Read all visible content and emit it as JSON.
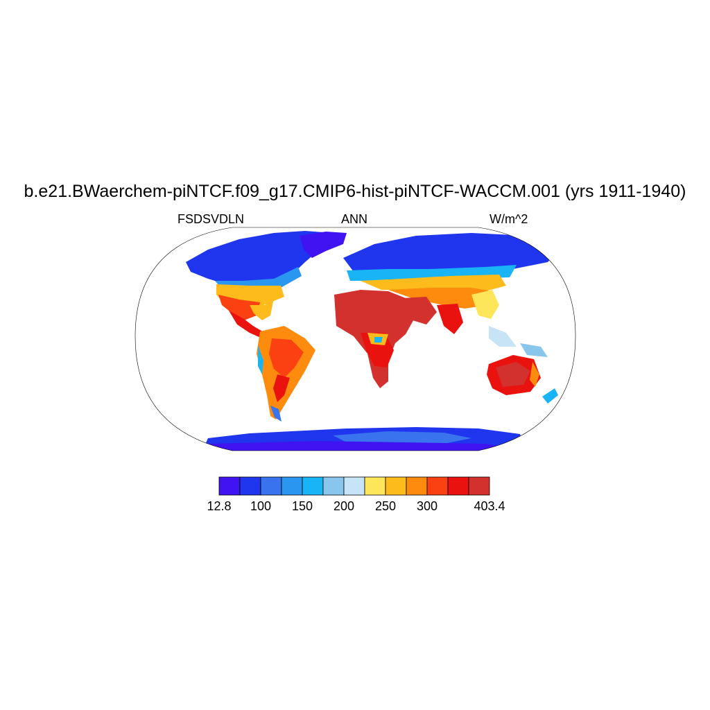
{
  "title": "b.e21.BWaerchem-piNTCF.f09_g17.CMIP6-hist-piNTCF-WACCM.001 (yrs 1911-1940)",
  "left_label": "FSDSVDLN",
  "center_label": "ANN",
  "right_label": "W/m^2",
  "colorbar": {
    "colors": [
      "#3f14f0",
      "#2035ee",
      "#3a73ee",
      "#2b96f0",
      "#18b4f5",
      "#88c6ee",
      "#c7e3f6",
      "#fde65a",
      "#fdbb1c",
      "#fd8b0d",
      "#fb4112",
      "#e9120e",
      "#d2312e"
    ],
    "labels": [
      {
        "text": "12.8",
        "boundary": 0
      },
      {
        "text": "100",
        "boundary": 2
      },
      {
        "text": "150",
        "boundary": 4
      },
      {
        "text": "200",
        "boundary": 6
      },
      {
        "text": "250",
        "boundary": 8
      },
      {
        "text": "300",
        "boundary": 10
      },
      {
        "text": "403.4",
        "boundary": 13
      }
    ]
  }
}
